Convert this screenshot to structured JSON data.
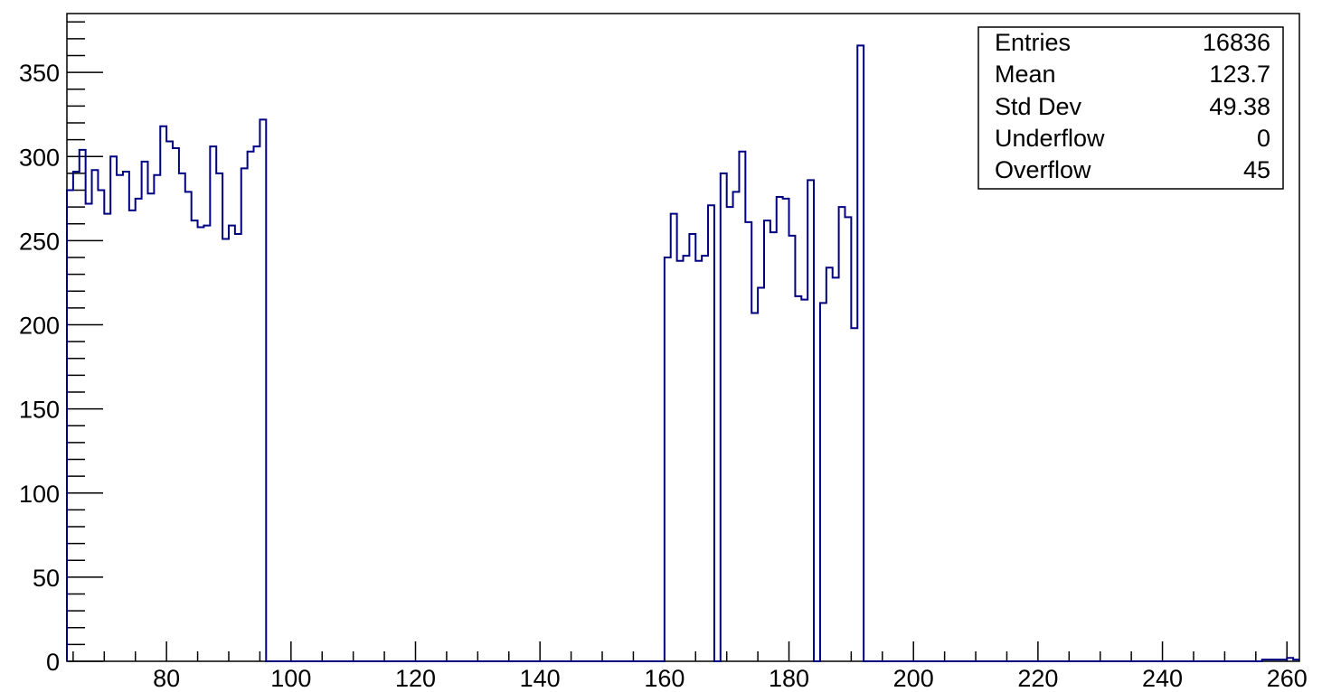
{
  "chart_data": {
    "type": "histogram",
    "xlim": [
      64,
      262
    ],
    "ylim": [
      0,
      385
    ],
    "bin_width": 1,
    "x_tick_labels": [
      80,
      100,
      120,
      140,
      160,
      180,
      200,
      220,
      240,
      260
    ],
    "y_tick_labels": [
      0,
      50,
      100,
      150,
      200,
      250,
      300,
      350
    ],
    "grid": false,
    "legend": "none",
    "line_color": "#000080",
    "bins": [
      {
        "x": 64,
        "y": 280
      },
      {
        "x": 65,
        "y": 291
      },
      {
        "x": 66,
        "y": 304
      },
      {
        "x": 67,
        "y": 272
      },
      {
        "x": 68,
        "y": 292
      },
      {
        "x": 69,
        "y": 280
      },
      {
        "x": 70,
        "y": 266
      },
      {
        "x": 71,
        "y": 300
      },
      {
        "x": 72,
        "y": 289
      },
      {
        "x": 73,
        "y": 291
      },
      {
        "x": 74,
        "y": 268
      },
      {
        "x": 75,
        "y": 275
      },
      {
        "x": 76,
        "y": 297
      },
      {
        "x": 77,
        "y": 278
      },
      {
        "x": 78,
        "y": 289
      },
      {
        "x": 79,
        "y": 318
      },
      {
        "x": 80,
        "y": 309
      },
      {
        "x": 81,
        "y": 305
      },
      {
        "x": 82,
        "y": 290
      },
      {
        "x": 83,
        "y": 279
      },
      {
        "x": 84,
        "y": 262
      },
      {
        "x": 85,
        "y": 258
      },
      {
        "x": 86,
        "y": 259
      },
      {
        "x": 87,
        "y": 306
      },
      {
        "x": 88,
        "y": 290
      },
      {
        "x": 89,
        "y": 251
      },
      {
        "x": 90,
        "y": 259
      },
      {
        "x": 91,
        "y": 254
      },
      {
        "x": 92,
        "y": 293
      },
      {
        "x": 93,
        "y": 303
      },
      {
        "x": 94,
        "y": 306
      },
      {
        "x": 95,
        "y": 322
      },
      {
        "x": 160,
        "y": 240
      },
      {
        "x": 161,
        "y": 266
      },
      {
        "x": 162,
        "y": 238
      },
      {
        "x": 163,
        "y": 241
      },
      {
        "x": 164,
        "y": 254
      },
      {
        "x": 165,
        "y": 238
      },
      {
        "x": 166,
        "y": 241
      },
      {
        "x": 167,
        "y": 271
      },
      {
        "x": 169,
        "y": 290
      },
      {
        "x": 170,
        "y": 270
      },
      {
        "x": 171,
        "y": 279
      },
      {
        "x": 172,
        "y": 303
      },
      {
        "x": 173,
        "y": 261
      },
      {
        "x": 174,
        "y": 207
      },
      {
        "x": 175,
        "y": 222
      },
      {
        "x": 176,
        "y": 262
      },
      {
        "x": 177,
        "y": 255
      },
      {
        "x": 178,
        "y": 276
      },
      {
        "x": 179,
        "y": 275
      },
      {
        "x": 180,
        "y": 253
      },
      {
        "x": 181,
        "y": 217
      },
      {
        "x": 182,
        "y": 215
      },
      {
        "x": 183,
        "y": 286
      },
      {
        "x": 185,
        "y": 213
      },
      {
        "x": 186,
        "y": 234
      },
      {
        "x": 187,
        "y": 228
      },
      {
        "x": 188,
        "y": 270
      },
      {
        "x": 189,
        "y": 264
      },
      {
        "x": 190,
        "y": 198
      },
      {
        "x": 191,
        "y": 366
      },
      {
        "x": 256,
        "y": 1
      },
      {
        "x": 257,
        "y": 1
      },
      {
        "x": 258,
        "y": 1
      },
      {
        "x": 259,
        "y": 1
      },
      {
        "x": 260,
        "y": 2
      },
      {
        "x": 261,
        "y": 1
      }
    ]
  },
  "stats_box": {
    "rows": [
      {
        "label": "Entries",
        "value": "16836"
      },
      {
        "label": "Mean",
        "value": "123.7"
      },
      {
        "label": "Std Dev",
        "value": "49.38"
      },
      {
        "label": "Underflow",
        "value": "0"
      },
      {
        "label": "Overflow",
        "value": "45"
      }
    ]
  }
}
